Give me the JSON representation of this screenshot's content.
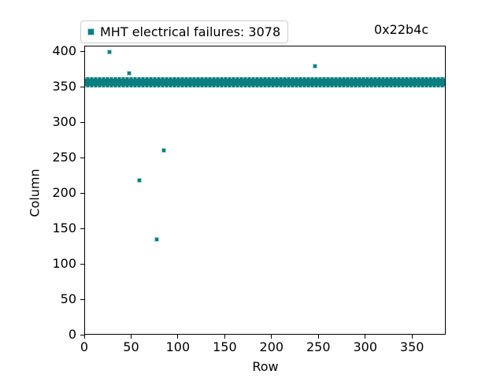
{
  "figure": {
    "legend_label": "MHT electrical failures: 3078",
    "annotation": "0x22b4c",
    "xlabel": "Row",
    "ylabel": "Column",
    "accent_color": "#0a7f82",
    "legend_border_color": "#cccccc"
  },
  "chart_data": {
    "type": "scatter",
    "title": "",
    "xlabel": "Row",
    "ylabel": "Column",
    "legend": [
      "MHT electrical failures: 3078"
    ],
    "legend_position": "top-left-above-axes",
    "annotation": "0x22b4c",
    "marker": "square",
    "marker_color": "#0a7f82",
    "grid": false,
    "xlim": [
      0,
      386
    ],
    "ylim": [
      0,
      408
    ],
    "x_ticks": [
      0,
      50,
      100,
      150,
      200,
      250,
      300,
      350
    ],
    "y_ticks": [
      0,
      50,
      100,
      150,
      200,
      250,
      300,
      350,
      400
    ],
    "total_failures": 3078,
    "points": [
      {
        "row": 27,
        "col": 399
      },
      {
        "row": 48,
        "col": 369
      },
      {
        "row": 246,
        "col": 379
      },
      {
        "row": 85,
        "col": 260
      },
      {
        "row": 59,
        "col": 218
      },
      {
        "row": 77,
        "col": 134
      }
    ],
    "dense_band": {
      "row_range": [
        0,
        386
      ],
      "col_range": [
        349,
        363
      ]
    }
  }
}
